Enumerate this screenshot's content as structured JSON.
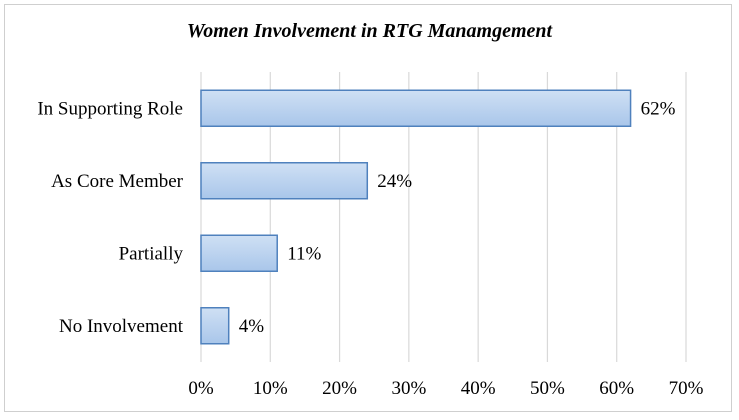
{
  "chart_data": {
    "type": "bar",
    "orientation": "horizontal",
    "title": "Women Involvement in RTG Manamgement",
    "categories": [
      "In Supporting Role",
      "As Core Member",
      "Partially",
      "No Involvement"
    ],
    "values": [
      62,
      24,
      11,
      4
    ],
    "data_labels": [
      "62%",
      "24%",
      "11%",
      "4%"
    ],
    "xlim": [
      0,
      70
    ],
    "x_ticks": [
      "0%",
      "10%",
      "20%",
      "30%",
      "40%",
      "50%",
      "60%",
      "70%"
    ],
    "grid": true,
    "legend": "none",
    "bar_color": "#a9c6ea",
    "bar_color_top": "#cfe0f4",
    "bar_border_color": "#4f81bd",
    "grid_color": "#d9d9d9"
  }
}
